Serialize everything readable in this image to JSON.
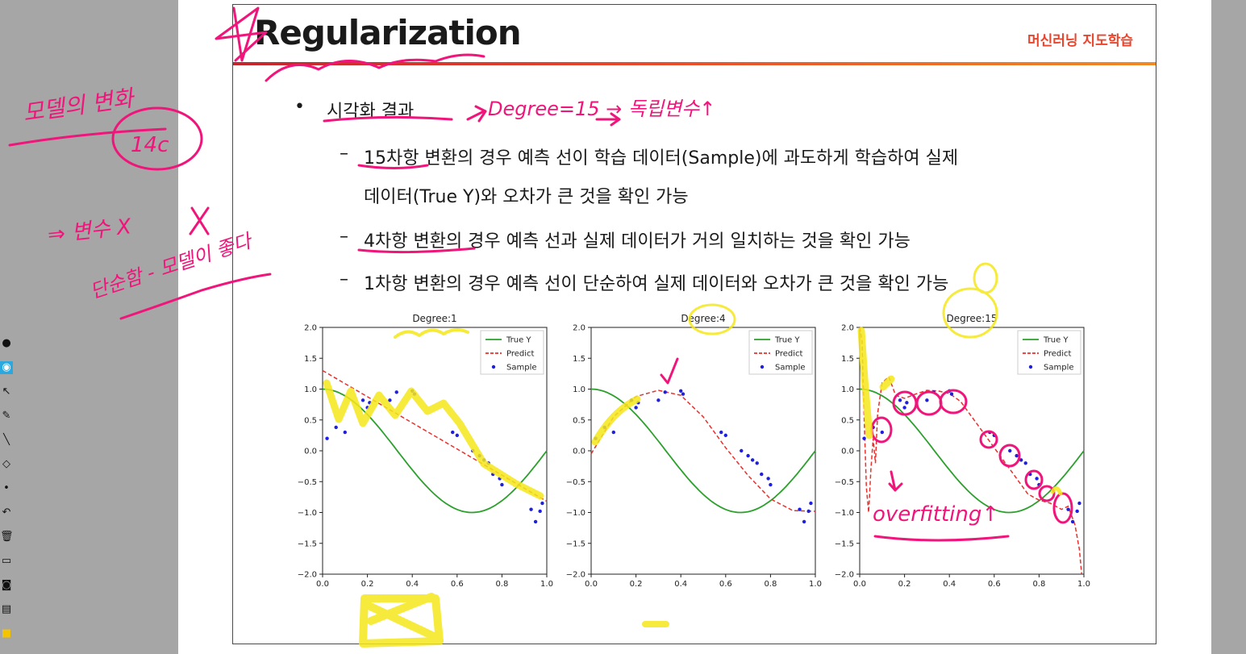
{
  "slide": {
    "title": "Regularization",
    "brand": "머신러닝 지도학습",
    "bullet_marker": "•",
    "bullet": "시각화 결과",
    "dash": "–",
    "sub_items": [
      "15차항 변환의 경우 예측 선이 학습 데이터(Sample)에 과도하게 학습하여 실제",
      "데이터(True Y)와 오차가 큰 것을 확인 가능",
      "4차항 변환의 경우 예측 선과 실제 데이터가 거의 일치하는 것을 확인 가능",
      "1차항 변환의 경우 예측 선이 단순하여 실제 데이터와 오차가 큰 것을 확인 가능"
    ]
  },
  "annotations": {
    "note_top": "Degree=15 → 독립변수↑",
    "note_overfit": "overfitting↑",
    "note_left_1": "모델의 변화",
    "note_left_2": "14c",
    "note_left_3": "⇒ 변수 X",
    "note_left_4": "단순함 - 모델이 좋다"
  },
  "toolbar": {
    "icons": [
      "pen-mode-icon",
      "eye-icon",
      "pointer-icon",
      "pen-icon",
      "line-icon",
      "eraser-icon",
      "dot-icon",
      "undo-icon",
      "delete-icon",
      "screen-icon",
      "camera-icon",
      "page-icon",
      "color-icon"
    ]
  },
  "chart_data": [
    {
      "type": "line",
      "title": "Degree:1",
      "xlim": [
        0,
        1
      ],
      "ylim": [
        -2,
        2
      ],
      "xticks": [
        "0.0",
        "0.2",
        "0.4",
        "0.6",
        "0.8",
        "1.0"
      ],
      "yticks": [
        "2.0",
        "1.5",
        "1.0",
        "0.5",
        "0.0",
        "−0.5",
        "−1.0",
        "−1.5",
        "−2.0"
      ],
      "legend": [
        "True Y",
        "Predict",
        "Sample"
      ],
      "predict": {
        "x": [
          0,
          1
        ],
        "y": [
          1.3,
          -0.82
        ]
      },
      "colors": {
        "true": "#2ca02c",
        "predict": "#e8302c",
        "sample": "#1f1fdd"
      }
    },
    {
      "type": "line",
      "title": "Degree:4",
      "xlim": [
        0,
        1
      ],
      "ylim": [
        -2,
        2
      ],
      "xticks": [
        "0.0",
        "0.2",
        "0.4",
        "0.6",
        "0.8",
        "1.0"
      ],
      "yticks": [
        "2.0",
        "1.5",
        "1.0",
        "0.5",
        "0.0",
        "−0.5",
        "−1.0",
        "−1.5",
        "−2.0"
      ],
      "legend": [
        "True Y",
        "Predict",
        "Sample"
      ],
      "predict": {
        "x": [
          0,
          0.1,
          0.2,
          0.3,
          0.4,
          0.5,
          0.6,
          0.7,
          0.8,
          0.9,
          1.0
        ],
        "y": [
          -0.05,
          0.55,
          0.88,
          0.98,
          0.9,
          0.55,
          0.05,
          -0.4,
          -0.78,
          -0.97,
          -0.98
        ]
      },
      "colors": {
        "true": "#2ca02c",
        "predict": "#e8302c",
        "sample": "#1f1fdd"
      }
    },
    {
      "type": "line",
      "title": "Degree:15",
      "xlim": [
        0,
        1
      ],
      "ylim": [
        -2,
        2
      ],
      "xticks": [
        "0.0",
        "0.2",
        "0.4",
        "0.6",
        "0.8",
        "1.0"
      ],
      "yticks": [
        "2.0",
        "1.5",
        "1.0",
        "0.5",
        "0.0",
        "−0.5",
        "−1.0",
        "−1.5",
        "−2.0"
      ],
      "legend": [
        "True Y",
        "Predict",
        "Sample"
      ],
      "predict": {
        "x": [
          0,
          0.01,
          0.02,
          0.03,
          0.04,
          0.05,
          0.06,
          0.07,
          0.08,
          0.1,
          0.13,
          0.16,
          0.2,
          0.25,
          0.3,
          0.35,
          0.4,
          0.45,
          0.5,
          0.55,
          0.6,
          0.65,
          0.7,
          0.75,
          0.8,
          0.85,
          0.9,
          0.93,
          0.96,
          0.98,
          0.99
        ],
        "y": [
          2,
          1.8,
          0.5,
          -0.6,
          -1.0,
          -0.3,
          0.2,
          -0.2,
          0.6,
          1.1,
          1.2,
          0.9,
          0.85,
          0.92,
          0.98,
          0.97,
          0.93,
          0.8,
          0.55,
          0.3,
          0.05,
          -0.2,
          -0.45,
          -0.7,
          -0.8,
          -0.85,
          -0.95,
          -0.9,
          -1.2,
          -1.6,
          -2.0
        ]
      },
      "colors": {
        "true": "#2ca02c",
        "predict": "#e8302c",
        "sample": "#1f1fdd"
      }
    }
  ],
  "samples": {
    "x": [
      0.02,
      0.06,
      0.1,
      0.18,
      0.2,
      0.21,
      0.3,
      0.33,
      0.4,
      0.41,
      0.58,
      0.6,
      0.67,
      0.7,
      0.72,
      0.74,
      0.76,
      0.79,
      0.8,
      0.93,
      0.95,
      0.97,
      0.98
    ],
    "y": [
      0.2,
      0.38,
      0.3,
      0.82,
      0.7,
      0.78,
      0.82,
      0.95,
      0.97,
      0.92,
      0.3,
      0.25,
      0.0,
      -0.08,
      -0.15,
      -0.2,
      -0.38,
      -0.45,
      -0.55,
      -0.95,
      -1.15,
      -0.98,
      -0.85
    ]
  }
}
